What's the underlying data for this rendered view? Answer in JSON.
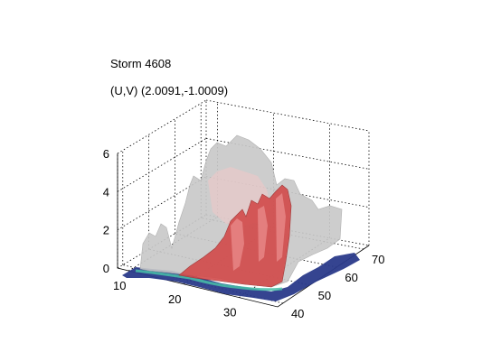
{
  "chart_data": {
    "type": "surface3d",
    "title": "Storm 4608",
    "subtitle": "(U,V) (2.0091,-1.0009)",
    "z_ticks": [
      "0",
      "2",
      "4",
      "6"
    ],
    "x_ticks": [
      "10",
      "20",
      "30"
    ],
    "y_ticks": [
      "40",
      "50",
      "60",
      "70"
    ],
    "zlim": [
      0,
      6
    ],
    "xlim": [
      8,
      37
    ],
    "ylim": [
      38,
      72
    ],
    "grid": "dotted",
    "layers": [
      {
        "surface": "outer-envelope",
        "color": "#c8c8c8"
      },
      {
        "surface": "inner-core",
        "color": "#d24a4a"
      },
      {
        "surface": "base",
        "color": "#2a3a8a"
      },
      {
        "surface": "base-edge",
        "color": "#48c0a8"
      }
    ]
  }
}
